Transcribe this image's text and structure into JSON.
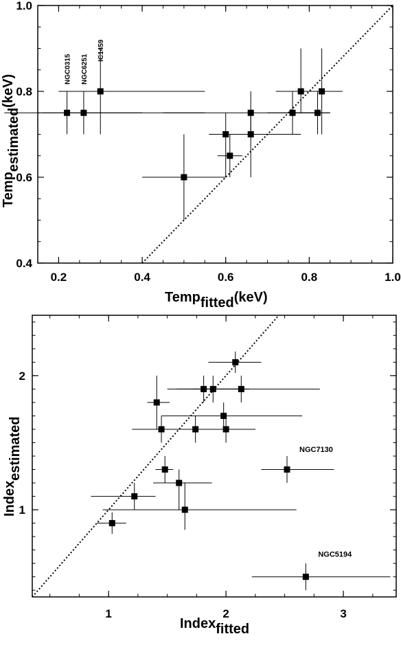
{
  "chart_data": [
    {
      "type": "scatter",
      "xlabel": {
        "main": "Temp",
        "sub": "fitted",
        "unit": "(keV)"
      },
      "ylabel": {
        "main": "Temp",
        "sub": "estimated",
        "unit": "(keV)"
      },
      "xlim": [
        0.15,
        1.0
      ],
      "ylim": [
        0.4,
        1.0
      ],
      "x_ticks": [
        0.2,
        0.4,
        0.6,
        0.8,
        1.0
      ],
      "x_tick_labels": [
        "0.2",
        "0.4",
        "0.6",
        "0.8",
        "1.0"
      ],
      "y_ticks": [
        0.4,
        0.6,
        0.8,
        1.0
      ],
      "y_tick_labels": [
        "0.4",
        "0.6",
        "0.8",
        "1.0"
      ],
      "reference_line": "y=x",
      "points": [
        {
          "x": 0.22,
          "y": 0.75,
          "x_err": [
            0.07,
            0.55
          ],
          "y_err": [
            0.7,
            0.8
          ]
        },
        {
          "x": 0.26,
          "y": 0.75,
          "x_err": [
            0.16,
            0.4
          ],
          "y_err": [
            0.7,
            0.8
          ]
        },
        {
          "x": 0.3,
          "y": 0.8,
          "x_err": [
            0.2,
            0.55
          ],
          "y_err": [
            0.7,
            0.9
          ]
        },
        {
          "x": 0.5,
          "y": 0.6,
          "x_err": [
            0.4,
            0.6
          ],
          "y_err": [
            0.5,
            0.7
          ]
        },
        {
          "x": 0.6,
          "y": 0.7,
          "x_err": [
            0.56,
            0.66
          ],
          "y_err": [
            0.6,
            0.75
          ]
        },
        {
          "x": 0.61,
          "y": 0.65,
          "x_err": [
            0.58,
            0.64
          ],
          "y_err": [
            0.6,
            0.7
          ]
        },
        {
          "x": 0.66,
          "y": 0.75,
          "x_err": [
            0.45,
            0.85
          ],
          "y_err": [
            0.7,
            0.8
          ]
        },
        {
          "x": 0.66,
          "y": 0.7,
          "x_err": [
            0.6,
            0.78
          ],
          "y_err": [
            0.6,
            0.75
          ]
        },
        {
          "x": 0.76,
          "y": 0.75,
          "x_err": [
            0.7,
            0.82
          ],
          "y_err": [
            0.7,
            0.8
          ]
        },
        {
          "x": 0.78,
          "y": 0.8,
          "x_err": [
            0.72,
            0.84
          ],
          "y_err": [
            0.75,
            0.9
          ]
        },
        {
          "x": 0.82,
          "y": 0.75,
          "x_err": [
            0.76,
            0.85
          ],
          "y_err": [
            0.7,
            0.8
          ]
        },
        {
          "x": 0.83,
          "y": 0.8,
          "x_err": [
            0.78,
            0.88
          ],
          "y_err": [
            0.7,
            0.9
          ]
        }
      ],
      "annotations": [
        {
          "text": "NGC0315",
          "x": 0.22,
          "y": 0.8
        },
        {
          "text": "NGC6251",
          "x": 0.26,
          "y": 0.8
        },
        {
          "text": "IC1459",
          "x": 0.3,
          "y": 0.85
        }
      ]
    },
    {
      "type": "scatter",
      "xlabel": {
        "main": "Index",
        "sub": "fitted"
      },
      "ylabel": {
        "main": "Index",
        "sub": "estimated"
      },
      "xlim": [
        0.35,
        3.45
      ],
      "ylim": [
        0.35,
        2.45
      ],
      "x_ticks": [
        1,
        2,
        3
      ],
      "x_tick_labels": [
        "1",
        "2",
        "3"
      ],
      "y_ticks": [
        1,
        2
      ],
      "y_tick_labels": [
        "1",
        "2"
      ],
      "reference_line": "y=x",
      "points": [
        {
          "x": 1.03,
          "y": 0.9,
          "x_err": [
            0.9,
            1.15
          ],
          "y_err": [
            0.82,
            0.98
          ]
        },
        {
          "x": 1.22,
          "y": 1.1,
          "x_err": [
            0.85,
            1.4
          ],
          "y_err": [
            1.0,
            1.2
          ]
        },
        {
          "x": 1.48,
          "y": 1.3,
          "x_err": [
            1.4,
            1.55
          ],
          "y_err": [
            1.2,
            1.4
          ]
        },
        {
          "x": 1.6,
          "y": 1.2,
          "x_err": [
            1.38,
            1.88
          ],
          "y_err": [
            1.0,
            1.3
          ]
        },
        {
          "x": 1.65,
          "y": 1.0,
          "x_err": [
            0.95,
            2.6
          ],
          "y_err": [
            0.85,
            1.2
          ]
        },
        {
          "x": 1.41,
          "y": 1.8,
          "x_err": [
            1.33,
            1.52
          ],
          "y_err": [
            1.6,
            2.0
          ]
        },
        {
          "x": 1.45,
          "y": 1.6,
          "x_err": [
            1.2,
            2.25
          ],
          "y_err": [
            1.5,
            1.7
          ]
        },
        {
          "x": 1.74,
          "y": 1.6,
          "x_err": [
            1.2,
            2.25
          ],
          "y_err": [
            1.5,
            1.7
          ]
        },
        {
          "x": 1.98,
          "y": 1.7,
          "x_err": [
            1.45,
            2.65
          ],
          "y_err": [
            1.6,
            1.8
          ]
        },
        {
          "x": 2.0,
          "y": 1.6,
          "x_err": [
            1.72,
            2.25
          ],
          "y_err": [
            1.5,
            1.7
          ]
        },
        {
          "x": 1.81,
          "y": 1.9,
          "x_err": [
            1.5,
            2.1
          ],
          "y_err": [
            1.8,
            2.0
          ]
        },
        {
          "x": 1.89,
          "y": 1.9,
          "x_err": [
            1.58,
            2.2
          ],
          "y_err": [
            1.8,
            2.0
          ]
        },
        {
          "x": 2.13,
          "y": 1.9,
          "x_err": [
            1.72,
            2.8
          ],
          "y_err": [
            1.8,
            2.0
          ]
        },
        {
          "x": 2.08,
          "y": 2.1,
          "x_err": [
            1.85,
            2.3
          ],
          "y_err": [
            2.02,
            2.18
          ]
        },
        {
          "x": 2.52,
          "y": 1.3,
          "x_err": [
            2.3,
            2.92
          ],
          "y_err": [
            1.2,
            1.4
          ]
        },
        {
          "x": 2.68,
          "y": 0.5,
          "x_err": [
            2.22,
            3.4
          ],
          "y_err": [
            0.4,
            0.6
          ]
        }
      ],
      "annotations": [
        {
          "text": "NGC7130",
          "x": 2.52,
          "y": 1.4
        },
        {
          "text": "NGC5194",
          "x": 2.68,
          "y": 0.62
        }
      ]
    }
  ]
}
